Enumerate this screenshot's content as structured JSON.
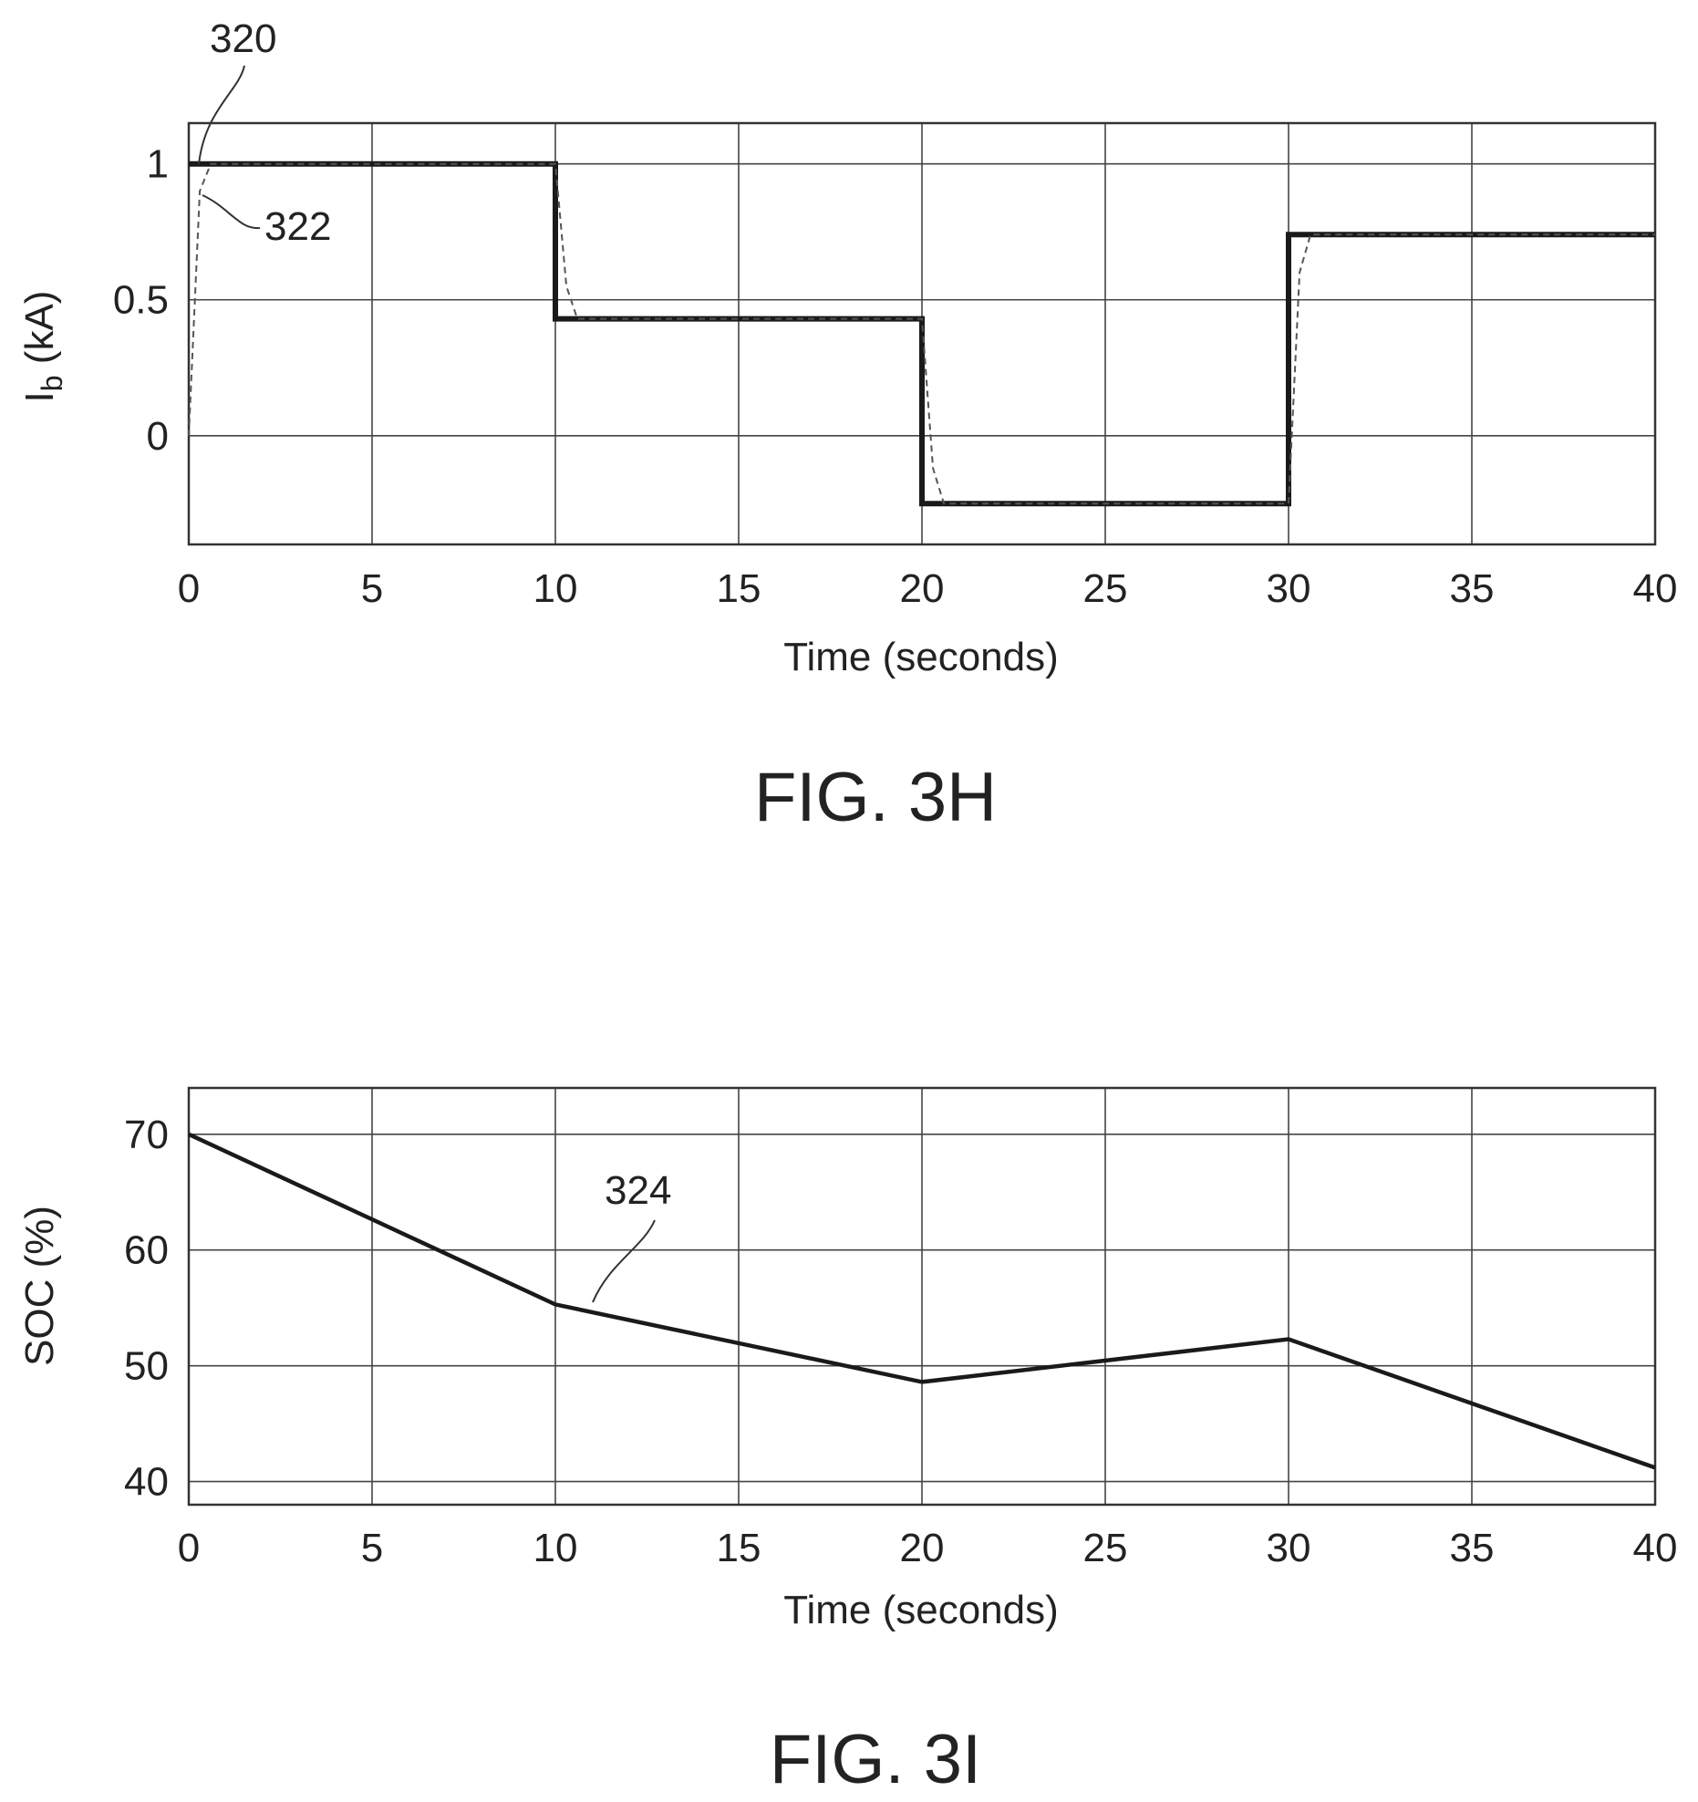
{
  "chart_data": [
    {
      "type": "line",
      "figure_label": "FIG. 3H",
      "xlabel": "Time (seconds)",
      "ylabel": "I",
      "ylabel_subscript": "b",
      "ylabel_unit": " (kA)",
      "xlim": [
        0,
        40
      ],
      "ylim": [
        -0.4,
        1.15
      ],
      "xticks": [
        0,
        5,
        10,
        15,
        20,
        25,
        30,
        35,
        40
      ],
      "yticks": [
        0,
        0.5,
        1
      ],
      "ytick_labels": [
        "0",
        "0.5",
        "1"
      ],
      "grid": true,
      "legend": "none",
      "series": [
        {
          "ref": "320",
          "style": "solid-thick",
          "x": [
            0,
            10,
            10,
            20,
            20,
            30,
            30,
            40
          ],
          "y": [
            1,
            1,
            0.43,
            0.43,
            -0.25,
            -0.25,
            0.74,
            0.74
          ]
        },
        {
          "ref": "322",
          "style": "dashed-thin",
          "x": [
            0,
            0.3,
            0.6,
            10,
            10.3,
            10.6,
            20,
            20.3,
            20.6,
            30,
            30.3,
            30.6,
            40
          ],
          "y": [
            0,
            0.9,
            1,
            1,
            0.55,
            0.43,
            0.43,
            -0.12,
            -0.25,
            -0.25,
            0.6,
            0.74,
            0.74
          ]
        }
      ],
      "annotations": [
        {
          "text": "320",
          "target": "320"
        },
        {
          "text": "322",
          "target": "322"
        }
      ]
    },
    {
      "type": "line",
      "figure_label": "FIG. 3I",
      "xlabel": "Time (seconds)",
      "ylabel": "SOC (%)",
      "xlim": [
        0,
        40
      ],
      "ylim": [
        38,
        74
      ],
      "xticks": [
        0,
        5,
        10,
        15,
        20,
        25,
        30,
        35,
        40
      ],
      "yticks": [
        40,
        50,
        60,
        70
      ],
      "ytick_labels": [
        "40",
        "50",
        "60",
        "70"
      ],
      "grid": true,
      "legend": "none",
      "series": [
        {
          "ref": "324",
          "style": "solid",
          "x": [
            0,
            10,
            20,
            30,
            40
          ],
          "y": [
            70,
            55.3,
            48.6,
            52.3,
            41.2
          ]
        }
      ],
      "annotations": [
        {
          "text": "324",
          "target": "324"
        }
      ]
    }
  ]
}
